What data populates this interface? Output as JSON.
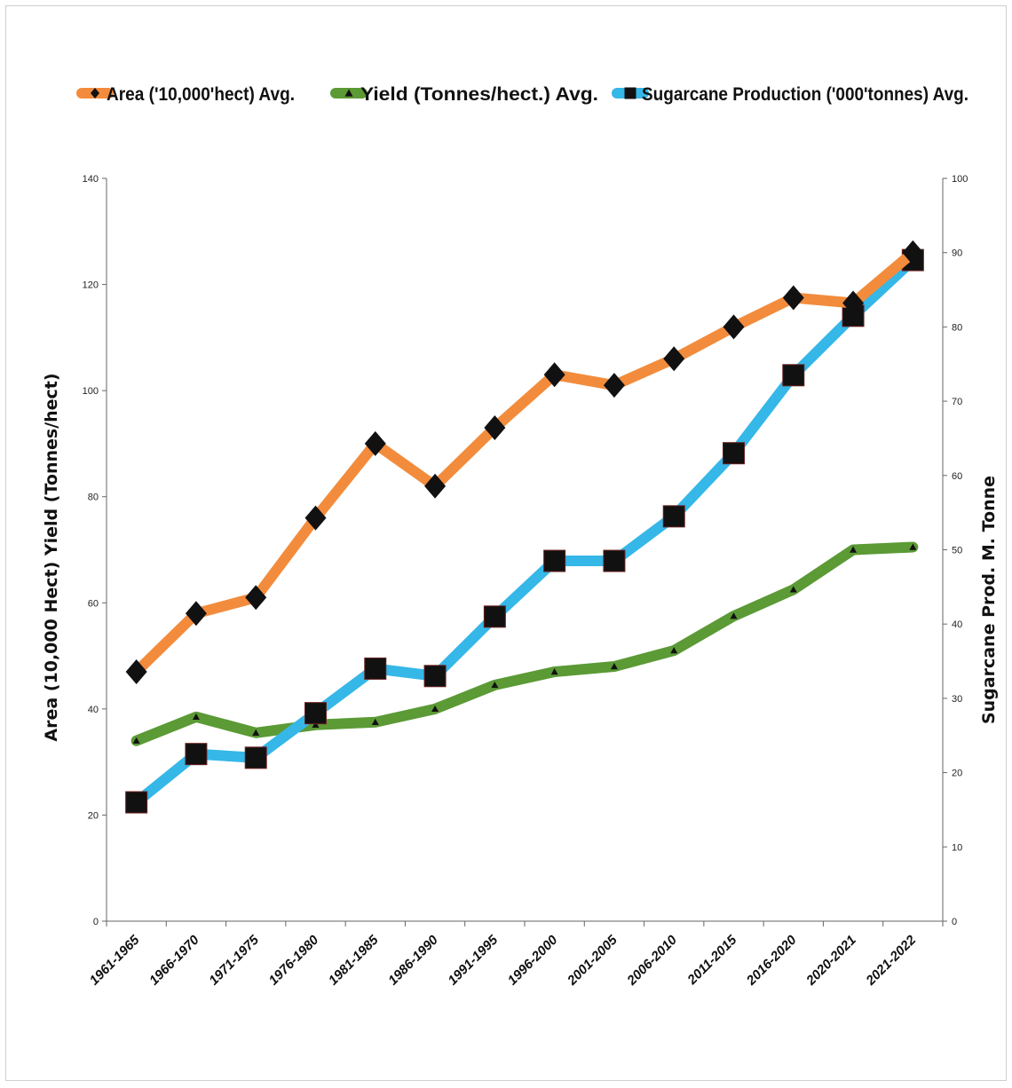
{
  "chart_data": {
    "type": "line",
    "categories": [
      "1961-1965",
      "1966-1970",
      "1971-1975",
      "1976-1980",
      "1981-1985",
      "1986-1990",
      "1991-1995",
      "1996-2000",
      "2001-2005",
      "2006-2010",
      "2011-2015",
      "2016-2020",
      "2020-2021",
      "2021-2022"
    ],
    "y_left": {
      "label": "Area (10,000 Hect) Yield  (Tonnes/hect)",
      "range": [
        0,
        140
      ],
      "ticks": [
        0,
        20,
        40,
        60,
        80,
        100,
        120,
        140
      ]
    },
    "y_right": {
      "label": "Sugarcane Prod. M. Tonne",
      "range": [
        0,
        100
      ],
      "ticks": [
        0,
        10,
        20,
        30,
        40,
        50,
        60,
        70,
        80,
        90,
        100
      ]
    },
    "series": [
      {
        "name": "Area ('10,000'hect) Avg.",
        "axis": "left",
        "color": "#f28c3c",
        "marker": "diamond",
        "values": [
          47,
          58,
          61,
          76,
          90,
          82,
          93,
          103,
          101,
          106,
          112,
          117.5,
          116.5,
          126
        ]
      },
      {
        "name": "Yield (Tonnes/hect.)   Avg.",
        "axis": "left",
        "color": "#5b9a35",
        "marker": "triangle",
        "values": [
          34,
          38.5,
          35.5,
          37,
          37.5,
          40,
          44.5,
          47,
          48,
          51,
          57.5,
          62.5,
          70,
          70.5
        ]
      },
      {
        "name": "Sugarcane Production ('000'tonnes)  Avg.",
        "axis": "right",
        "color": "#35b7e8",
        "marker": "square",
        "values": [
          16,
          22.5,
          22,
          28,
          34,
          33,
          41,
          48.5,
          48.5,
          54.5,
          63,
          73.5,
          81.5,
          89
        ]
      }
    ],
    "legend_position": "top",
    "grid": false
  }
}
